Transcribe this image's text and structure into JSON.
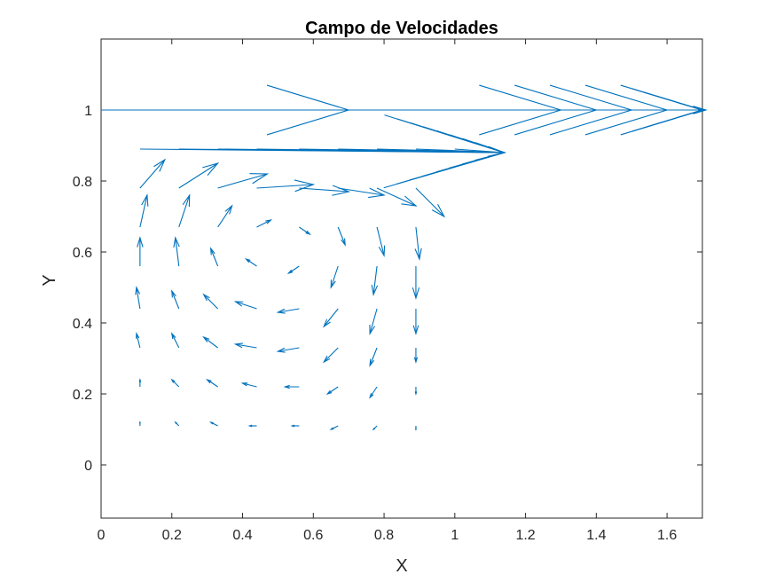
{
  "chart_data": {
    "type": "quiver",
    "title": "Campo de Velocidades",
    "xlabel": "X",
    "ylabel": "Y",
    "xlim": [
      0,
      1.7
    ],
    "ylim": [
      -0.15,
      1.2
    ],
    "xticks": [
      0,
      0.2,
      0.4,
      0.6,
      0.8,
      1,
      1.2,
      1.4,
      1.6
    ],
    "xtick_labels": [
      "0",
      "0.2",
      "0.4",
      "0.6",
      "0.8",
      "1",
      "1.2",
      "1.4",
      "1.6"
    ],
    "yticks": [
      0,
      0.2,
      0.4,
      0.6,
      0.8,
      1
    ],
    "ytick_labels": [
      "0",
      "0.2",
      "0.4",
      "0.6",
      "0.8",
      "1"
    ],
    "grid": false,
    "color": "#0072BD",
    "arrows": [
      {
        "x": 0.0,
        "y": 1.0,
        "u": 0.7,
        "v": 0.0
      },
      {
        "x": 0.6,
        "y": 1.0,
        "u": 0.7,
        "v": 0.0
      },
      {
        "x": 0.7,
        "y": 1.0,
        "u": 0.7,
        "v": 0.0
      },
      {
        "x": 0.8,
        "y": 1.0,
        "u": 0.7,
        "v": 0.0
      },
      {
        "x": 0.9,
        "y": 1.0,
        "u": 0.7,
        "v": 0.0
      },
      {
        "x": 1.0,
        "y": 1.0,
        "u": 0.7,
        "v": 0.0
      },
      {
        "x": 1.1,
        "y": 1.0,
        "u": 0.6,
        "v": 0.0
      },
      {
        "x": 1.2,
        "y": 1.0,
        "u": 0.5,
        "v": 0.0
      },
      {
        "x": 1.3,
        "y": 1.0,
        "u": 0.4,
        "v": 0.0
      },
      {
        "x": 1.4,
        "y": 1.0,
        "u": 0.3,
        "v": 0.0
      },
      {
        "x": 1.5,
        "y": 1.0,
        "u": 0.2,
        "v": 0.0
      },
      {
        "x": 1.6,
        "y": 1.0,
        "u": 0.11,
        "v": 0.0
      },
      {
        "x": 0.11,
        "y": 0.89,
        "u": 1.03,
        "v": -0.01
      },
      {
        "x": 0.22,
        "y": 0.89,
        "u": 0.92,
        "v": -0.01
      },
      {
        "x": 0.33,
        "y": 0.89,
        "u": 0.81,
        "v": -0.01
      },
      {
        "x": 0.44,
        "y": 0.89,
        "u": 0.7,
        "v": -0.01
      },
      {
        "x": 0.56,
        "y": 0.89,
        "u": 0.58,
        "v": -0.01
      },
      {
        "x": 0.67,
        "y": 0.89,
        "u": 0.47,
        "v": -0.01
      },
      {
        "x": 0.78,
        "y": 0.89,
        "u": 0.36,
        "v": -0.01
      },
      {
        "x": 0.89,
        "y": 0.89,
        "u": 0.25,
        "v": -0.01
      },
      {
        "x": 1.0,
        "y": 0.89,
        "u": 0.14,
        "v": -0.01
      },
      {
        "x": 0.11,
        "y": 0.78,
        "u": 0.07,
        "v": 0.08
      },
      {
        "x": 0.22,
        "y": 0.78,
        "u": 0.11,
        "v": 0.07
      },
      {
        "x": 0.33,
        "y": 0.78,
        "u": 0.14,
        "v": 0.04
      },
      {
        "x": 0.44,
        "y": 0.78,
        "u": 0.16,
        "v": 0.01
      },
      {
        "x": 0.56,
        "y": 0.78,
        "u": 0.14,
        "v": -0.01
      },
      {
        "x": 0.67,
        "y": 0.78,
        "u": 0.13,
        "v": -0.02
      },
      {
        "x": 0.78,
        "y": 0.78,
        "u": 0.11,
        "v": -0.05
      },
      {
        "x": 0.89,
        "y": 0.78,
        "u": 0.08,
        "v": -0.08
      },
      {
        "x": 0.11,
        "y": 0.67,
        "u": 0.02,
        "v": 0.09
      },
      {
        "x": 0.22,
        "y": 0.67,
        "u": 0.03,
        "v": 0.09
      },
      {
        "x": 0.33,
        "y": 0.67,
        "u": 0.04,
        "v": 0.06
      },
      {
        "x": 0.44,
        "y": 0.67,
        "u": 0.04,
        "v": 0.02
      },
      {
        "x": 0.56,
        "y": 0.67,
        "u": 0.03,
        "v": -0.02
      },
      {
        "x": 0.67,
        "y": 0.67,
        "u": 0.02,
        "v": -0.05
      },
      {
        "x": 0.78,
        "y": 0.67,
        "u": 0.02,
        "v": -0.08
      },
      {
        "x": 0.89,
        "y": 0.67,
        "u": 0.01,
        "v": -0.09
      },
      {
        "x": 0.11,
        "y": 0.56,
        "u": 0.0,
        "v": 0.08
      },
      {
        "x": 0.22,
        "y": 0.56,
        "u": -0.01,
        "v": 0.08
      },
      {
        "x": 0.33,
        "y": 0.56,
        "u": -0.02,
        "v": 0.05
      },
      {
        "x": 0.44,
        "y": 0.56,
        "u": -0.03,
        "v": 0.02
      },
      {
        "x": 0.56,
        "y": 0.56,
        "u": -0.03,
        "v": -0.02
      },
      {
        "x": 0.67,
        "y": 0.56,
        "u": -0.02,
        "v": -0.06
      },
      {
        "x": 0.78,
        "y": 0.56,
        "u": -0.01,
        "v": -0.08
      },
      {
        "x": 0.89,
        "y": 0.56,
        "u": 0.0,
        "v": -0.09
      },
      {
        "x": 0.11,
        "y": 0.44,
        "u": -0.01,
        "v": 0.06
      },
      {
        "x": 0.22,
        "y": 0.44,
        "u": -0.02,
        "v": 0.05
      },
      {
        "x": 0.33,
        "y": 0.44,
        "u": -0.04,
        "v": 0.04
      },
      {
        "x": 0.44,
        "y": 0.44,
        "u": -0.06,
        "v": 0.02
      },
      {
        "x": 0.56,
        "y": 0.44,
        "u": -0.06,
        "v": -0.01
      },
      {
        "x": 0.67,
        "y": 0.44,
        "u": -0.04,
        "v": -0.05
      },
      {
        "x": 0.78,
        "y": 0.44,
        "u": -0.02,
        "v": -0.07
      },
      {
        "x": 0.89,
        "y": 0.44,
        "u": 0.0,
        "v": -0.07
      },
      {
        "x": 0.11,
        "y": 0.33,
        "u": -0.01,
        "v": 0.04
      },
      {
        "x": 0.22,
        "y": 0.33,
        "u": -0.02,
        "v": 0.04
      },
      {
        "x": 0.33,
        "y": 0.33,
        "u": -0.04,
        "v": 0.03
      },
      {
        "x": 0.44,
        "y": 0.33,
        "u": -0.06,
        "v": 0.01
      },
      {
        "x": 0.56,
        "y": 0.33,
        "u": -0.06,
        "v": -0.01
      },
      {
        "x": 0.67,
        "y": 0.33,
        "u": -0.04,
        "v": -0.04
      },
      {
        "x": 0.78,
        "y": 0.33,
        "u": -0.02,
        "v": -0.05
      },
      {
        "x": 0.89,
        "y": 0.33,
        "u": 0.0,
        "v": -0.04
      },
      {
        "x": 0.11,
        "y": 0.22,
        "u": 0.0,
        "v": 0.02
      },
      {
        "x": 0.22,
        "y": 0.22,
        "u": -0.02,
        "v": 0.02
      },
      {
        "x": 0.33,
        "y": 0.22,
        "u": -0.03,
        "v": 0.02
      },
      {
        "x": 0.44,
        "y": 0.22,
        "u": -0.04,
        "v": 0.01
      },
      {
        "x": 0.56,
        "y": 0.22,
        "u": -0.04,
        "v": 0.0
      },
      {
        "x": 0.67,
        "y": 0.22,
        "u": -0.03,
        "v": -0.02
      },
      {
        "x": 0.78,
        "y": 0.22,
        "u": -0.02,
        "v": -0.03
      },
      {
        "x": 0.89,
        "y": 0.22,
        "u": 0.0,
        "v": -0.02
      },
      {
        "x": 0.11,
        "y": 0.11,
        "u": 0.0,
        "v": 0.01
      },
      {
        "x": 0.22,
        "y": 0.11,
        "u": -0.01,
        "v": 0.01
      },
      {
        "x": 0.33,
        "y": 0.11,
        "u": -0.02,
        "v": 0.01
      },
      {
        "x": 0.44,
        "y": 0.11,
        "u": -0.02,
        "v": 0.0
      },
      {
        "x": 0.56,
        "y": 0.11,
        "u": -0.02,
        "v": 0.0
      },
      {
        "x": 0.67,
        "y": 0.11,
        "u": -0.02,
        "v": -0.01
      },
      {
        "x": 0.78,
        "y": 0.11,
        "u": -0.01,
        "v": -0.01
      },
      {
        "x": 0.89,
        "y": 0.11,
        "u": 0.0,
        "v": -0.01
      }
    ]
  }
}
